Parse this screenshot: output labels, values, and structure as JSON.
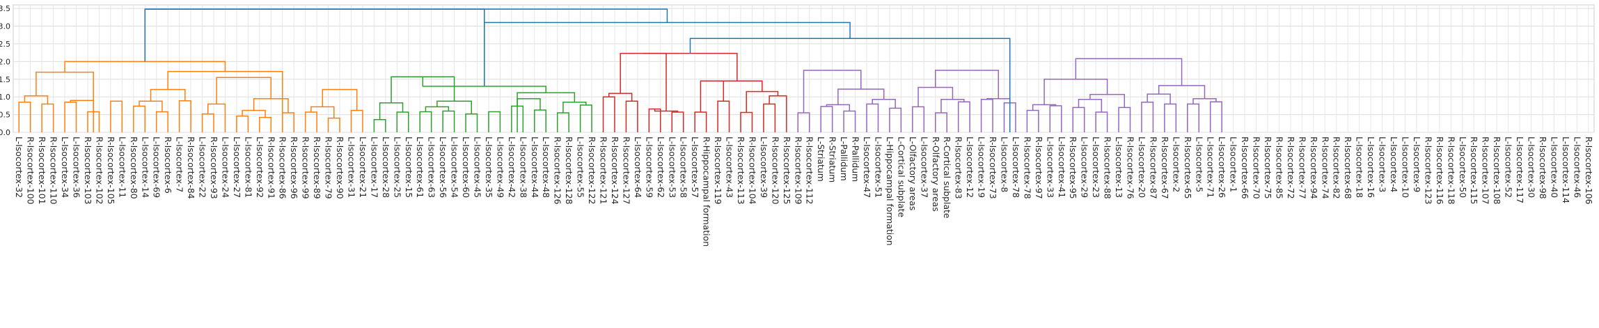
{
  "chart_data": {
    "type": "dendrogram",
    "ylim": [
      0,
      3.6
    ],
    "yticks": [
      "0.0",
      "0.5",
      "1.0",
      "1.5",
      "2.0",
      "2.5",
      "3.0",
      "3.5"
    ],
    "grid": true,
    "colors": {
      "orange": "#ff7f0e",
      "green": "#2ca02c",
      "red": "#d62728",
      "purple": "#9467bd",
      "blue": "#1f77b4"
    },
    "leaves": [
      "L-Isocortex-32",
      "R-Isocortex-100",
      "R-Isocortex-101",
      "R-Isocortex-110",
      "L-Isocortex-34",
      "L-Isocortex-36",
      "R-Isocortex-103",
      "R-Isocortex-102",
      "R-Isocortex-105",
      "L-Isocortex-11",
      "R-Isocortex-80",
      "L-Isocortex-14",
      "L-Isocortex-69",
      "R-Isocortex-6",
      "L-Isocortex-7",
      "R-Isocortex-84",
      "L-Isocortex-22",
      "R-Isocortex-93",
      "L-Isocortex-24",
      "L-Isocortex-27",
      "L-Isocortex-81",
      "L-Isocortex-92",
      "R-Isocortex-91",
      "R-Isocortex-86",
      "R-Isocortex-96",
      "R-Isocortex-99",
      "R-Isocortex-89",
      "R-Isocortex-79",
      "R-Isocortex-90",
      "L-Isocortex-31",
      "L-Isocortex-21",
      "L-Isocortex-17",
      "L-Isocortex-28",
      "L-Isocortex-25",
      "L-Isocortex-15",
      "L-Isocortex-61",
      "L-Isocortex-63",
      "L-Isocortex-56",
      "L-Isocortex-54",
      "L-Isocortex-60",
      "L-Isocortex-45",
      "L-Isocortex-35",
      "L-Isocortex-49",
      "L-Isocortex-42",
      "L-Isocortex-38",
      "L-Isocortex-44",
      "L-Isocortex-48",
      "R-Isocortex-126",
      "R-Isocortex-128",
      "L-Isocortex-55",
      "R-Isocortex-122",
      "R-Isocortex-121",
      "R-Isocortex-124",
      "R-Isocortex-127",
      "L-Isocortex-64",
      "L-Isocortex-59",
      "L-Isocortex-62",
      "L-Isocortex-53",
      "L-Isocortex-58",
      "L-Isocortex-57",
      "R-Hippocampal formation",
      "R-Isocortex-119",
      "L-Isocortex-43",
      "R-Isocortex-113",
      "R-Isocortex-104",
      "L-Isocortex-39",
      "R-Isocortex-120",
      "R-Isocortex-125",
      "R-Isocortex-109",
      "R-Isocortex-112",
      "L-Striatum",
      "R-Striatum",
      "L-Pallidum",
      "R-Pallidum",
      "L-Isocortex-47",
      "L-Isocortex-51",
      "L-Hippocampal formation",
      "L-Cortical subplate",
      "L-Olfactory areas",
      "L-Isocortex-37",
      "R-Olfactory areas",
      "R-Cortical subplate",
      "R-Isocortex-83",
      "L-Isocortex-12",
      "L-Isocortex-19",
      "R-Isocortex-73",
      "L-Isocortex-8",
      "L-Isocortex-78",
      "R-Isocortex-78",
      "R-Isocortex-97",
      "L-Isocortex-33",
      "L-Isocortex-41",
      "R-Isocortex-95",
      "L-Isocortex-29",
      "L-Isocortex-23",
      "R-Isocortex-88",
      "L-Isocortex-13",
      "R-Isocortex-76",
      "L-Isocortex-20",
      "R-Isocortex-87",
      "R-Isocortex-67",
      "L-Isocortex-2",
      "R-Isocortex-65",
      "L-Isocortex-5",
      "L-Isocortex-71",
      "L-Isocortex-26",
      "L-Isocortex-1",
      "R-Isocortex-66",
      "R-Isocortex-70",
      "R-Isocortex-75",
      "R-Isocortex-85",
      "R-Isocortex-72",
      "R-Isocortex-77",
      "R-Isocortex-94",
      "R-Isocortex-74",
      "R-Isocortex-82",
      "R-Isocortex-68",
      "L-Isocortex-18",
      "L-Isocortex-16",
      "L-Isocortex-3",
      "L-Isocortex-4",
      "L-Isocortex-10",
      "L-Isocortex-9",
      "R-Isocortex-123",
      "R-Isocortex-116",
      "R-Isocortex-118",
      "L-Isocortex-50",
      "R-Isocortex-115",
      "R-Isocortex-107",
      "R-Isocortex-108",
      "L-Isocortex-52",
      "L-Isocortex-117",
      "L-Isocortex-30",
      "R-Isocortex-98",
      "L-Isocortex-40",
      "L-Isocortex-114",
      "L-Isocortex-46",
      "R-Isocortex-106"
    ],
    "links": [
      [
        "orange",
        0,
        1,
        0.85,
        0.72
      ],
      [
        "orange",
        2,
        3,
        0.57,
        0.8
      ],
      [
        "orange",
        "0-1",
        "2-3",
        1.03,
        0.93
      ],
      [
        "orange",
        4,
        5,
        0.5,
        0.85
      ],
      [
        "orange",
        6,
        7,
        0.58,
        0.42
      ],
      [
        "orange",
        "4-5",
        "6-7",
        0.9,
        0.79
      ],
      [
        "orange",
        8,
        9,
        0.74,
        0.88
      ],
      [
        "orange",
        "0-3",
        "4-9",
        1.7,
        1.5
      ],
      [
        "orange",
        10,
        11,
        0.74,
        0.62
      ],
      [
        "orange",
        12,
        13,
        0.58,
        0.56
      ],
      [
        "orange",
        "10-11",
        "12-13",
        0.88,
        0.8
      ],
      [
        "orange",
        14,
        15,
        0.89,
        0.74
      ],
      [
        "orange",
        "10-13",
        "14-15",
        1.21,
        1.05
      ],
      [
        "orange",
        16,
        17,
        0.52,
        0.47
      ],
      [
        "orange",
        "16-17",
        18,
        0.8,
        0.68
      ],
      [
        "orange",
        19,
        20,
        0.46,
        0.4
      ],
      [
        "orange",
        21,
        22,
        0.42,
        0.33
      ],
      [
        "orange",
        "19-20",
        "21-22",
        0.62,
        0.52
      ],
      [
        "orange",
        23,
        24,
        0.55,
        0.48
      ],
      [
        "orange",
        "19-22",
        "23-24",
        0.95,
        0.72
      ],
      [
        "orange",
        "16-18",
        "19-24",
        1.55,
        1.4
      ],
      [
        "orange",
        25,
        26,
        0.57,
        0.48
      ],
      [
        "orange",
        27,
        28,
        0.4,
        0.35
      ],
      [
        "orange",
        "25-26",
        "27-28",
        0.72,
        0.6
      ],
      [
        "orange",
        29,
        30,
        0.62,
        0.52
      ],
      [
        "orange",
        "25-28",
        "29-30",
        1.21,
        1.0
      ],
      [
        "orange",
        "10-15",
        "16-30",
        1.72,
        1.55
      ],
      [
        "orange",
        "0-9",
        "10-30",
        2.0,
        1.8
      ],
      [
        "green",
        31,
        32,
        0.36,
        0.36
      ],
      [
        "green",
        33,
        34,
        0.57,
        0.47
      ],
      [
        "green",
        "31-32",
        "33-34",
        0.83,
        0.7
      ],
      [
        "green",
        35,
        36,
        0.45,
        0.58
      ],
      [
        "green",
        37,
        38,
        0.49,
        0.6
      ],
      [
        "green",
        "35-36",
        "37-38",
        0.72,
        0.63
      ],
      [
        "green",
        39,
        40,
        0.52,
        0.47
      ],
      [
        "green",
        "35-38",
        "39-40",
        0.88,
        0.74
      ],
      [
        "green",
        "31-34",
        "35-40",
        1.57,
        1.2
      ],
      [
        "green",
        41,
        42,
        0.58,
        0.58
      ],
      [
        "green",
        43,
        44,
        0.74,
        0.68
      ],
      [
        "green",
        45,
        46,
        0.48,
        0.63
      ],
      [
        "green",
        "43-44",
        "45-46",
        0.95,
        0.83
      ],
      [
        "green",
        47,
        48,
        0.55,
        0.45
      ],
      [
        "green",
        49,
        50,
        0.77,
        0.77
      ],
      [
        "green",
        "47-48",
        "49-50",
        0.82,
        0.85
      ],
      [
        "green",
        "41-46",
        "47-50",
        1.12,
        1.02
      ],
      [
        "green",
        "31-40",
        "41-50",
        1.3,
        1.25
      ],
      [
        "red",
        51,
        52,
        1.0,
        1.0
      ],
      [
        "red",
        53,
        54,
        0.88,
        0.62
      ],
      [
        "red",
        "51-52",
        "53-54",
        1.1,
        1.05
      ],
      [
        "red",
        55,
        56,
        0.66,
        0.58
      ],
      [
        "red",
        57,
        58,
        0.57,
        0.42
      ],
      [
        "red",
        "55-56",
        "57-58",
        0.6,
        0.58
      ],
      [
        "red",
        "51-54",
        "55-58",
        2.23,
        2.05
      ],
      [
        "red",
        59,
        60,
        0.57,
        0.57
      ],
      [
        "red",
        61,
        62,
        0.88,
        0.6
      ],
      [
        "red",
        "59-60",
        "61-62",
        1.45,
        1.25
      ],
      [
        "red",
        63,
        64,
        0.56,
        0.56
      ],
      [
        "red",
        65,
        66,
        0.37,
        0.8
      ],
      [
        "red",
        "65-66",
        67,
        1.03,
        0.88
      ],
      [
        "red",
        "63-64",
        "65-67",
        1.15,
        1.05
      ],
      [
        "red",
        "59-62",
        "63-67",
        1.45,
        1.3
      ],
      [
        "red",
        "51-58",
        "59-67",
        2.23,
        1.45
      ],
      [
        "purple",
        68,
        69,
        0.55,
        0.47
      ],
      [
        "purple",
        70,
        71,
        0.73,
        0.62
      ],
      [
        "purple",
        72,
        73,
        0.55,
        0.6
      ],
      [
        "purple",
        "70-71",
        "72-73",
        0.78,
        0.65
      ],
      [
        "purple",
        74,
        75,
        0.8,
        0.77
      ],
      [
        "purple",
        76,
        77,
        0.68,
        0.55
      ],
      [
        "purple",
        "74-75",
        "76-77",
        0.93,
        0.85
      ],
      [
        "purple",
        "70-73",
        "74-77",
        1.22,
        1.0
      ],
      [
        "purple",
        "68-69",
        "70-77",
        1.75,
        1.45
      ],
      [
        "purple",
        78,
        79,
        0.72,
        0.72
      ],
      [
        "purple",
        80,
        81,
        0.55,
        0.45
      ],
      [
        "purple",
        82,
        83,
        0.86,
        0.68
      ],
      [
        "purple",
        "80-81",
        "82-83",
        0.93,
        0.86
      ],
      [
        "purple",
        "78-79",
        "80-83",
        1.27,
        1.05
      ],
      [
        "purple",
        84,
        85,
        0.63,
        0.93
      ],
      [
        "purple",
        86,
        87,
        0.83,
        0.75
      ],
      [
        "purple",
        "84-85",
        "86-87",
        0.95,
        0.9
      ],
      [
        "purple",
        "78-83",
        "84-87",
        1.75,
        1.25
      ],
      [
        "purple",
        88,
        89,
        0.62,
        0.55
      ],
      [
        "purple",
        90,
        91,
        0.75,
        0.65
      ],
      [
        "purple",
        "88-89",
        "90-91",
        0.78,
        0.73
      ],
      [
        "purple",
        92,
        93,
        0.7,
        0.6
      ],
      [
        "purple",
        94,
        95,
        0.57,
        0.45
      ],
      [
        "purple",
        "92-93",
        "94-95",
        0.93,
        0.7
      ],
      [
        "purple",
        96,
        97,
        0.7,
        0.7
      ],
      [
        "purple",
        "92-95",
        "96-97",
        0.93,
        1.07
      ],
      [
        "purple",
        "88-91",
        "92-97",
        1.5,
        1.1
      ],
      [
        "purple",
        98,
        99,
        0.85,
        0.72
      ],
      [
        "purple",
        100,
        101,
        0.75,
        0.8
      ],
      [
        "purple",
        "98-99",
        "100-101",
        1.05,
        1.08
      ],
      [
        "purple",
        102,
        103,
        0.66,
        0.8
      ],
      [
        "purple",
        104,
        105,
        0.86,
        0.75
      ],
      [
        "purple",
        "102-103",
        "104-105",
        0.86,
        0.95
      ],
      [
        "purple",
        "98-101",
        "102-105",
        1.32,
        1.08
      ],
      [
        "purple",
        "88-97",
        "98-105",
        2.08,
        1.9
      ]
    ],
    "top_links": [
      [
        "blue",
        "0-30",
        "31-50",
        3.48,
        3.48
      ],
      [
        "blue",
        "51-67",
        "68-105",
        2.65,
        2.65
      ],
      [
        "blue",
        "31-50",
        "51-105",
        3.1,
        2.65
      ],
      [
        "blue",
        "0-30",
        "31-105",
        3.48,
        3.1
      ]
    ]
  }
}
